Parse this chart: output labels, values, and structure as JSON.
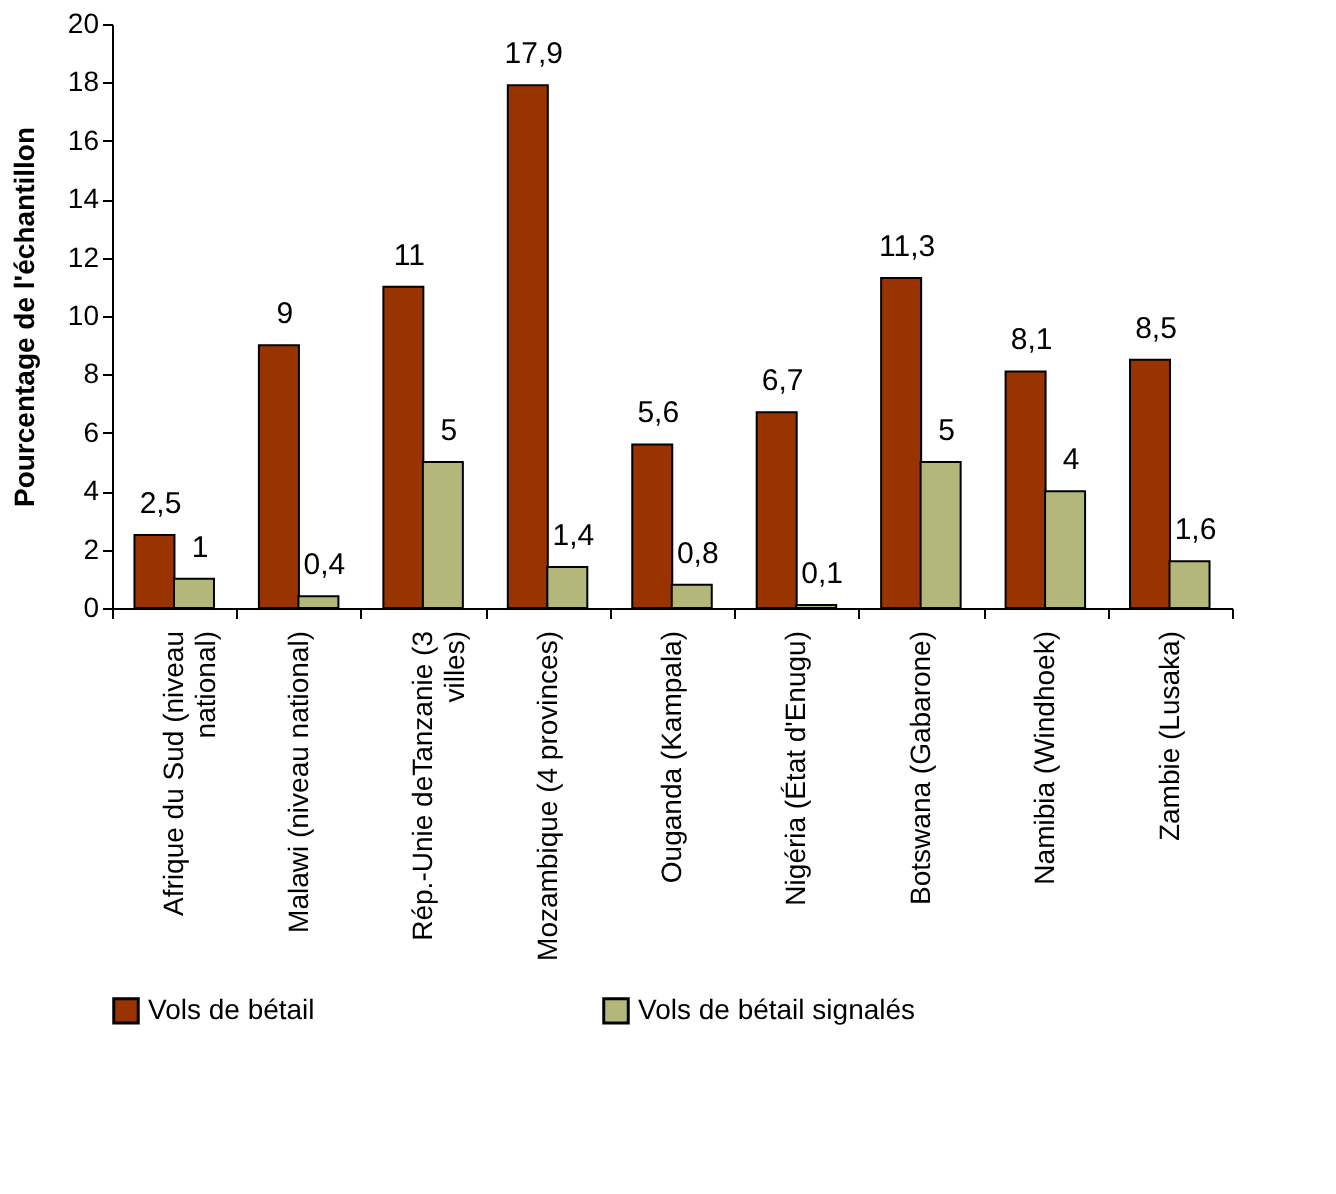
{
  "chart_data": {
    "type": "bar",
    "ylabel": "Pourcentage de l'échantillon",
    "categories": [
      "Afrique du Sud (niveau national)",
      "Malawi (niveau national)",
      "Rép.-Unie deTanzanie (3 villes)",
      "Mozambique (4 provinces)",
      "Ouganda (Kampala)",
      "Nigéria (État d'Enugu)",
      "Botswana (Gabarone)",
      "Namibia (Windhoek)",
      "Zambie (Lusaka)"
    ],
    "series": [
      {
        "name": "Vols de bétail",
        "color": "#993300",
        "values": [
          2.5,
          9,
          11,
          17.9,
          5.6,
          6.7,
          11.3,
          8.1,
          8.5
        ],
        "value_labels": [
          "2,5",
          "9",
          "11",
          "17,9",
          "5,6",
          "6,7",
          "11,3",
          "8,1",
          "8,5"
        ]
      },
      {
        "name": "Vols de bétail signalés",
        "color": "#b3b87a",
        "values": [
          1,
          0.4,
          5,
          1.4,
          0.8,
          0.1,
          5,
          4,
          1.6
        ],
        "value_labels": [
          "1",
          "0,4",
          "5",
          "1,4",
          "0,8",
          "0,1",
          "5",
          "4",
          "1,6"
        ]
      }
    ],
    "ylim": [
      0,
      20
    ],
    "yticks": [
      0,
      2,
      4,
      6,
      8,
      10,
      12,
      14,
      16,
      18,
      20
    ],
    "grid": false,
    "legend": "bottom"
  }
}
